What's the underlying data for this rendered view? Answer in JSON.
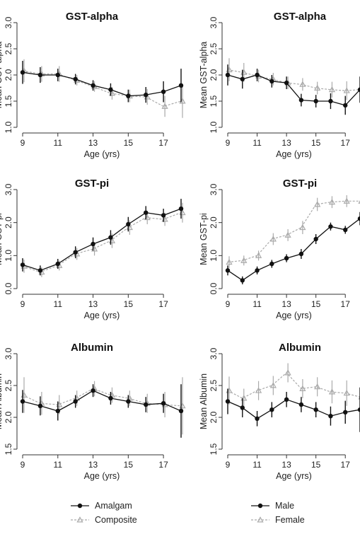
{
  "chart_data": [
    {
      "type": "line",
      "title": "GST-alpha",
      "xlabel": "Age (yrs)",
      "ylabel": "Mean GST-alpha",
      "x": [
        9,
        10,
        11,
        12,
        13,
        14,
        15,
        16,
        17,
        18
      ],
      "xticks": [
        9,
        11,
        13,
        15,
        17
      ],
      "xlim": [
        9,
        18
      ],
      "ylim": [
        1.0,
        3.0
      ],
      "yticks": [
        "1.0",
        "1.5",
        "2.0",
        "2.5",
        "3.0"
      ],
      "series": [
        {
          "name": "Amalgam",
          "values": [
            2.05,
            2.0,
            2.0,
            1.92,
            1.8,
            1.72,
            1.6,
            1.62,
            1.68,
            1.8
          ],
          "error": [
            0.22,
            0.15,
            0.12,
            0.1,
            0.1,
            0.12,
            0.12,
            0.15,
            0.2,
            0.32
          ],
          "color": "#111111"
        },
        {
          "name": "Composite",
          "values": [
            2.08,
            2.02,
            2.02,
            1.9,
            1.78,
            1.65,
            1.6,
            1.58,
            1.4,
            1.5
          ],
          "error": [
            0.22,
            0.15,
            0.15,
            0.1,
            0.1,
            0.12,
            0.12,
            0.15,
            0.2,
            0.32
          ],
          "color": "#aaaaaa"
        }
      ]
    },
    {
      "type": "line",
      "title": "GST-alpha",
      "xlabel": "Age (yrs)",
      "ylabel": "Mean GST-alpha",
      "x": [
        9,
        10,
        11,
        12,
        13,
        14,
        15,
        16,
        17,
        18
      ],
      "xticks": [
        9,
        11,
        13,
        15,
        17
      ],
      "xlim": [
        9,
        18
      ],
      "ylim": [
        1.0,
        3.0
      ],
      "yticks": [
        "1.0",
        "1.5",
        "2.0",
        "2.5",
        "3.0"
      ],
      "series": [
        {
          "name": "Male",
          "values": [
            2.0,
            1.92,
            2.0,
            1.88,
            1.85,
            1.52,
            1.5,
            1.5,
            1.42,
            1.72
          ],
          "error": [
            0.2,
            0.18,
            0.12,
            0.12,
            0.12,
            0.12,
            0.12,
            0.15,
            0.18,
            0.25
          ],
          "color": "#111111"
        },
        {
          "name": "Female",
          "values": [
            2.1,
            2.05,
            1.98,
            1.92,
            1.85,
            1.82,
            1.75,
            1.72,
            1.7,
            1.72
          ],
          "error": [
            0.22,
            0.18,
            0.12,
            0.12,
            0.12,
            0.12,
            0.12,
            0.15,
            0.18,
            0.25
          ],
          "color": "#aaaaaa"
        }
      ]
    },
    {
      "type": "line",
      "title": "GST-pi",
      "xlabel": "Age (yrs)",
      "ylabel": "Mean GST-pi",
      "x": [
        9,
        10,
        11,
        12,
        13,
        14,
        15,
        16,
        17,
        18
      ],
      "xticks": [
        9,
        11,
        13,
        15,
        17
      ],
      "xlim": [
        9,
        18
      ],
      "ylim": [
        0.0,
        3.0
      ],
      "yticks": [
        "0.0",
        "1.0",
        "2.0",
        "3.0"
      ],
      "series": [
        {
          "name": "Amalgam",
          "values": [
            0.72,
            0.55,
            0.75,
            1.1,
            1.35,
            1.55,
            1.95,
            2.3,
            2.22,
            2.42
          ],
          "error": [
            0.2,
            0.15,
            0.15,
            0.18,
            0.2,
            0.22,
            0.22,
            0.2,
            0.2,
            0.3
          ],
          "color": "#111111"
        },
        {
          "name": "Composite",
          "values": [
            0.68,
            0.5,
            0.7,
            1.05,
            1.2,
            1.45,
            1.85,
            2.15,
            2.1,
            2.3
          ],
          "error": [
            0.2,
            0.15,
            0.15,
            0.18,
            0.2,
            0.22,
            0.22,
            0.2,
            0.2,
            0.3
          ],
          "color": "#aaaaaa"
        }
      ]
    },
    {
      "type": "line",
      "title": "GST-pi",
      "xlabel": "Age (yrs)",
      "ylabel": "Mean GST-pi",
      "x": [
        9,
        10,
        11,
        12,
        13,
        14,
        15,
        16,
        17,
        18
      ],
      "xticks": [
        9,
        11,
        13,
        15,
        17
      ],
      "xlim": [
        9,
        18
      ],
      "ylim": [
        0.0,
        3.0
      ],
      "yticks": [
        "0.0",
        "1.0",
        "2.0",
        "3.0"
      ],
      "series": [
        {
          "name": "Male",
          "values": [
            0.55,
            0.25,
            0.55,
            0.75,
            0.92,
            1.05,
            1.5,
            1.88,
            1.78,
            2.12
          ],
          "error": [
            0.15,
            0.12,
            0.12,
            0.12,
            0.12,
            0.15,
            0.15,
            0.12,
            0.12,
            0.2
          ],
          "color": "#111111"
        },
        {
          "name": "Female",
          "values": [
            0.8,
            0.85,
            1.0,
            1.5,
            1.62,
            1.85,
            2.55,
            2.62,
            2.65,
            2.65
          ],
          "error": [
            0.18,
            0.15,
            0.15,
            0.18,
            0.18,
            0.2,
            0.2,
            0.18,
            0.18,
            0.25
          ],
          "color": "#aaaaaa"
        }
      ]
    },
    {
      "type": "line",
      "title": "Albumin",
      "xlabel": "Age (yrs)",
      "ylabel": "Mean Albumin",
      "x": [
        9,
        10,
        11,
        12,
        13,
        14,
        15,
        16,
        17,
        18
      ],
      "xticks": [
        9,
        11,
        13,
        15,
        17
      ],
      "xlim": [
        9,
        18
      ],
      "ylim": [
        1.5,
        3.0
      ],
      "yticks": [
        "1.5",
        "2.0",
        "2.5",
        "3.0"
      ],
      "series": [
        {
          "name": "Amalgam",
          "values": [
            2.25,
            2.18,
            2.1,
            2.25,
            2.42,
            2.3,
            2.25,
            2.2,
            2.22,
            2.1
          ],
          "error": [
            0.18,
            0.15,
            0.15,
            0.1,
            0.1,
            0.1,
            0.1,
            0.12,
            0.15,
            0.42
          ],
          "color": "#111111"
        },
        {
          "name": "Composite",
          "values": [
            2.35,
            2.22,
            2.2,
            2.3,
            2.45,
            2.35,
            2.3,
            2.22,
            2.2,
            2.18
          ],
          "error": [
            0.28,
            0.18,
            0.15,
            0.12,
            0.12,
            0.12,
            0.12,
            0.15,
            0.2,
            0.45
          ],
          "color": "#aaaaaa"
        }
      ]
    },
    {
      "type": "line",
      "title": "Albumin",
      "xlabel": "Age (yrs)",
      "ylabel": "Mean Albumin",
      "x": [
        9,
        10,
        11,
        12,
        13,
        14,
        15,
        16,
        17,
        18
      ],
      "xticks": [
        9,
        11,
        13,
        15,
        17
      ],
      "xlim": [
        9,
        18
      ],
      "ylim": [
        1.5,
        3.0
      ],
      "yticks": [
        "1.5",
        "2.0",
        "2.5",
        "3.0"
      ],
      "series": [
        {
          "name": "Male",
          "values": [
            2.25,
            2.15,
            1.98,
            2.12,
            2.28,
            2.2,
            2.12,
            2.02,
            2.08,
            2.12
          ],
          "error": [
            0.2,
            0.15,
            0.12,
            0.12,
            0.12,
            0.12,
            0.12,
            0.15,
            0.18,
            0.35
          ],
          "color": "#111111"
        },
        {
          "name": "Female",
          "values": [
            2.42,
            2.3,
            2.42,
            2.5,
            2.7,
            2.45,
            2.48,
            2.4,
            2.38,
            2.32
          ],
          "error": [
            0.22,
            0.15,
            0.15,
            0.15,
            0.15,
            0.15,
            0.15,
            0.18,
            0.2,
            0.35
          ],
          "color": "#aaaaaa"
        }
      ]
    }
  ],
  "legends": [
    {
      "placement": "bottom-left",
      "items": [
        {
          "label": "Amalgam",
          "color": "#111111",
          "marker": "circle"
        },
        {
          "label": "Composite",
          "color": "#aaaaaa",
          "marker": "triangle"
        }
      ]
    },
    {
      "placement": "bottom-right",
      "items": [
        {
          "label": "Male",
          "color": "#111111",
          "marker": "circle"
        },
        {
          "label": "Female",
          "color": "#aaaaaa",
          "marker": "triangle"
        }
      ]
    }
  ]
}
